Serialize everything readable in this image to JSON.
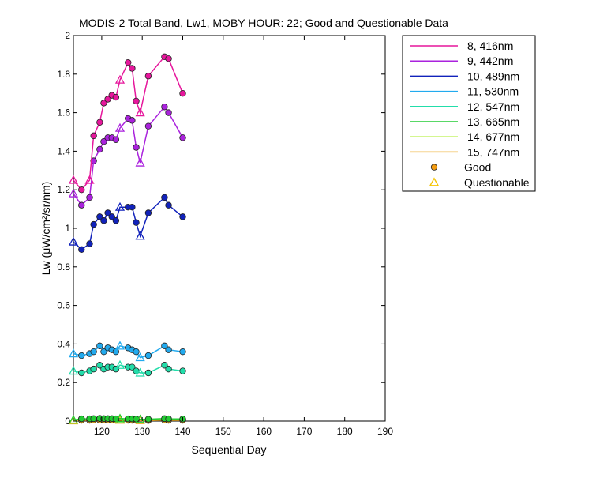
{
  "chart_data": {
    "type": "line",
    "title": "MODIS-2 Total Band,  Lw1, MOBY HOUR: 22;  Good and Questionable Data",
    "xlabel": "Sequential Day",
    "ylabel": "Lw (μW/cm²/sr/nm)",
    "xlim": [
      113,
      190
    ],
    "ylim": [
      0,
      2
    ],
    "x_ticks": [
      120,
      130,
      140,
      150,
      160,
      170,
      180,
      190
    ],
    "y_ticks": [
      0,
      0.2,
      0.4,
      0.6,
      0.8,
      1,
      1.2,
      1.4,
      1.6,
      1.8,
      2
    ],
    "y_tick_labels": [
      "0",
      "0.2",
      "0.4",
      "0.6",
      "0.8",
      "1",
      "1.2",
      "1.4",
      "1.6",
      "1.8",
      "2"
    ],
    "grid": false,
    "legend_position": "outside-top-right",
    "marker_legend": [
      {
        "label": "Good",
        "marker": "circle",
        "color": "#f39c12"
      },
      {
        "label": "Questionable",
        "marker": "triangle",
        "color": "#f5c400"
      }
    ],
    "series": [
      {
        "name": "8, 416nm",
        "color": "#e6179c",
        "points": [
          [
            113,
            1.25,
            "q"
          ],
          [
            115,
            1.2,
            "g"
          ],
          [
            117,
            1.25,
            "q"
          ],
          [
            118,
            1.48,
            "g"
          ],
          [
            119.5,
            1.55,
            "g"
          ],
          [
            120.5,
            1.65,
            "g"
          ],
          [
            121.5,
            1.67,
            "g"
          ],
          [
            122.5,
            1.69,
            "g"
          ],
          [
            123.5,
            1.68,
            "g"
          ],
          [
            124.5,
            1.77,
            "q"
          ],
          [
            126.5,
            1.86,
            "g"
          ],
          [
            127.5,
            1.83,
            "g"
          ],
          [
            128.5,
            1.66,
            "g"
          ],
          [
            129.5,
            1.6,
            "q"
          ],
          [
            131.5,
            1.79,
            "g"
          ],
          [
            135.5,
            1.89,
            "g"
          ],
          [
            136.5,
            1.88,
            "g"
          ],
          [
            140,
            1.7,
            "g"
          ]
        ]
      },
      {
        "name": "9, 442nm",
        "color": "#aa22dd",
        "points": [
          [
            113,
            1.18,
            "q"
          ],
          [
            115,
            1.12,
            "g"
          ],
          [
            117,
            1.16,
            "g"
          ],
          [
            118,
            1.35,
            "g"
          ],
          [
            119.5,
            1.41,
            "g"
          ],
          [
            120.5,
            1.45,
            "g"
          ],
          [
            121.5,
            1.47,
            "g"
          ],
          [
            122.5,
            1.47,
            "g"
          ],
          [
            123.5,
            1.46,
            "g"
          ],
          [
            124.5,
            1.52,
            "q"
          ],
          [
            126.5,
            1.57,
            "g"
          ],
          [
            127.5,
            1.56,
            "g"
          ],
          [
            128.5,
            1.42,
            "g"
          ],
          [
            129.5,
            1.34,
            "q"
          ],
          [
            131.5,
            1.53,
            "g"
          ],
          [
            135.5,
            1.63,
            "g"
          ],
          [
            136.5,
            1.6,
            "g"
          ],
          [
            140,
            1.47,
            "g"
          ]
        ]
      },
      {
        "name": "10, 489nm",
        "color": "#1122bb",
        "points": [
          [
            113,
            0.93,
            "q"
          ],
          [
            115,
            0.89,
            "g"
          ],
          [
            117,
            0.92,
            "g"
          ],
          [
            118,
            1.02,
            "g"
          ],
          [
            119.5,
            1.06,
            "g"
          ],
          [
            120.5,
            1.04,
            "g"
          ],
          [
            121.5,
            1.08,
            "g"
          ],
          [
            122.5,
            1.06,
            "g"
          ],
          [
            123.5,
            1.04,
            "g"
          ],
          [
            124.5,
            1.11,
            "q"
          ],
          [
            126.5,
            1.11,
            "g"
          ],
          [
            127.5,
            1.11,
            "g"
          ],
          [
            128.5,
            1.03,
            "g"
          ],
          [
            129.5,
            0.96,
            "q"
          ],
          [
            131.5,
            1.08,
            "g"
          ],
          [
            135.5,
            1.16,
            "g"
          ],
          [
            136.5,
            1.12,
            "g"
          ],
          [
            140,
            1.06,
            "g"
          ]
        ]
      },
      {
        "name": "11, 530nm",
        "color": "#22aaee",
        "points": [
          [
            113,
            0.35,
            "q"
          ],
          [
            115,
            0.34,
            "g"
          ],
          [
            117,
            0.35,
            "g"
          ],
          [
            118,
            0.36,
            "g"
          ],
          [
            119.5,
            0.39,
            "g"
          ],
          [
            120.5,
            0.36,
            "g"
          ],
          [
            121.5,
            0.38,
            "g"
          ],
          [
            122.5,
            0.37,
            "g"
          ],
          [
            123.5,
            0.36,
            "g"
          ],
          [
            124.5,
            0.39,
            "q"
          ],
          [
            126.5,
            0.38,
            "g"
          ],
          [
            127.5,
            0.37,
            "g"
          ],
          [
            128.5,
            0.36,
            "g"
          ],
          [
            129.5,
            0.33,
            "q"
          ],
          [
            131.5,
            0.34,
            "g"
          ],
          [
            135.5,
            0.39,
            "g"
          ],
          [
            136.5,
            0.37,
            "g"
          ],
          [
            140,
            0.36,
            "g"
          ]
        ]
      },
      {
        "name": "12, 547nm",
        "color": "#22ddaa",
        "points": [
          [
            113,
            0.26,
            "q"
          ],
          [
            115,
            0.25,
            "g"
          ],
          [
            117,
            0.26,
            "g"
          ],
          [
            118,
            0.27,
            "g"
          ],
          [
            119.5,
            0.29,
            "g"
          ],
          [
            120.5,
            0.27,
            "g"
          ],
          [
            121.5,
            0.28,
            "g"
          ],
          [
            122.5,
            0.28,
            "g"
          ],
          [
            123.5,
            0.27,
            "g"
          ],
          [
            124.5,
            0.29,
            "q"
          ],
          [
            126.5,
            0.28,
            "g"
          ],
          [
            127.5,
            0.28,
            "g"
          ],
          [
            128.5,
            0.26,
            "g"
          ],
          [
            129.5,
            0.25,
            "q"
          ],
          [
            131.5,
            0.25,
            "g"
          ],
          [
            135.5,
            0.29,
            "g"
          ],
          [
            136.5,
            0.27,
            "g"
          ],
          [
            140,
            0.26,
            "g"
          ]
        ]
      },
      {
        "name": "13, 665nm",
        "color": "#22cc33",
        "points": [
          [
            113,
            0.006,
            "q"
          ],
          [
            115,
            0.012,
            "g"
          ],
          [
            117,
            0.012,
            "g"
          ],
          [
            118,
            0.013,
            "g"
          ],
          [
            119.5,
            0.014,
            "g"
          ],
          [
            120.5,
            0.013,
            "g"
          ],
          [
            121.5,
            0.013,
            "g"
          ],
          [
            122.5,
            0.013,
            "g"
          ],
          [
            123.5,
            0.012,
            "g"
          ],
          [
            124.5,
            0.013,
            "q"
          ],
          [
            126.5,
            0.012,
            "g"
          ],
          [
            127.5,
            0.012,
            "g"
          ],
          [
            128.5,
            0.011,
            "g"
          ],
          [
            129.5,
            0.009,
            "q"
          ],
          [
            131.5,
            0.01,
            "g"
          ],
          [
            135.5,
            0.013,
            "g"
          ],
          [
            136.5,
            0.012,
            "g"
          ],
          [
            140,
            0.011,
            "g"
          ]
        ]
      },
      {
        "name": "14, 677nm",
        "color": "#aaee22",
        "points": [
          [
            113,
            0.005,
            "q"
          ],
          [
            115,
            0.011,
            "g"
          ],
          [
            117,
            0.011,
            "g"
          ],
          [
            118,
            0.012,
            "g"
          ],
          [
            119.5,
            0.013,
            "g"
          ],
          [
            120.5,
            0.012,
            "g"
          ],
          [
            121.5,
            0.012,
            "g"
          ],
          [
            122.5,
            0.012,
            "g"
          ],
          [
            123.5,
            0.011,
            "g"
          ],
          [
            124.5,
            0.012,
            "q"
          ],
          [
            126.5,
            0.011,
            "g"
          ],
          [
            127.5,
            0.011,
            "g"
          ],
          [
            128.5,
            0.01,
            "g"
          ],
          [
            129.5,
            0.008,
            "q"
          ],
          [
            131.5,
            0.009,
            "g"
          ],
          [
            135.5,
            0.012,
            "g"
          ],
          [
            136.5,
            0.011,
            "g"
          ],
          [
            140,
            0.01,
            "g"
          ]
        ]
      },
      {
        "name": "15, 747nm",
        "color": "#eeaa22",
        "points": [
          [
            113,
            0.002,
            "q"
          ],
          [
            115,
            0.004,
            "g"
          ],
          [
            117,
            0.004,
            "g"
          ],
          [
            118,
            0.005,
            "g"
          ],
          [
            119.5,
            0.005,
            "g"
          ],
          [
            120.5,
            0.005,
            "g"
          ],
          [
            121.5,
            0.005,
            "g"
          ],
          [
            122.5,
            0.005,
            "g"
          ],
          [
            123.5,
            0.004,
            "g"
          ],
          [
            124.5,
            0.005,
            "q"
          ],
          [
            126.5,
            0.004,
            "g"
          ],
          [
            127.5,
            0.004,
            "g"
          ],
          [
            128.5,
            0.004,
            "g"
          ],
          [
            129.5,
            0.003,
            "q"
          ],
          [
            131.5,
            0.003,
            "g"
          ],
          [
            135.5,
            0.005,
            "g"
          ],
          [
            136.5,
            0.004,
            "g"
          ],
          [
            140,
            0.004,
            "g"
          ]
        ]
      }
    ]
  }
}
